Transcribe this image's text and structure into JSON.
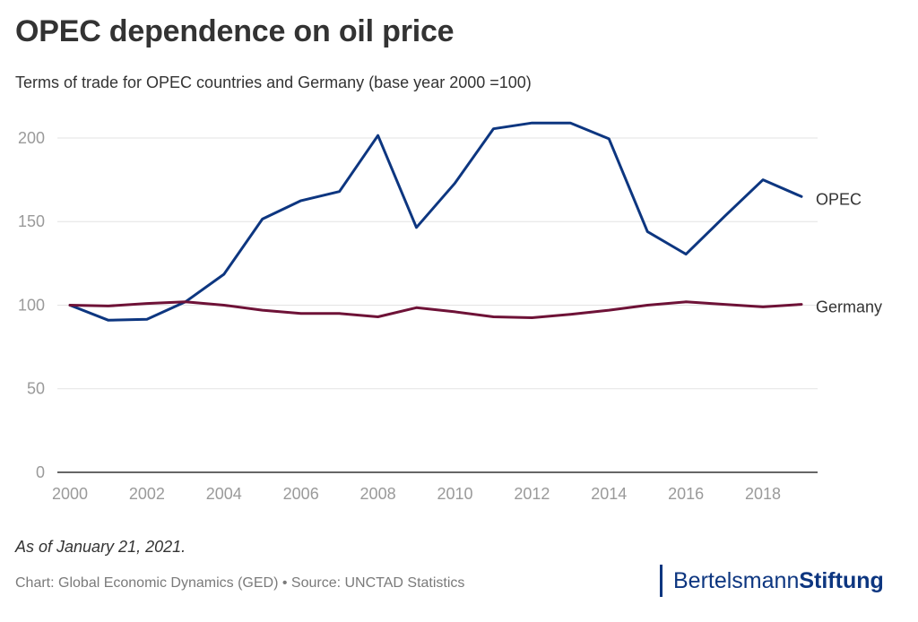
{
  "chart_data": {
    "type": "line",
    "title": "OPEC dependence on oil price",
    "subtitle": "Terms of trade for OPEC countries and Germany (base year 2000 =100)",
    "xlabel": "",
    "ylabel": "",
    "x": [
      2000,
      2001,
      2002,
      2003,
      2004,
      2005,
      2006,
      2007,
      2008,
      2009,
      2010,
      2011,
      2012,
      2013,
      2014,
      2015,
      2016,
      2017,
      2018,
      2019
    ],
    "xlim": [
      2000,
      2019
    ],
    "ylim": [
      0,
      215
    ],
    "x_ticks": [
      "2000",
      "2002",
      "2004",
      "2006",
      "2008",
      "2010",
      "2012",
      "2014",
      "2016",
      "2018"
    ],
    "y_ticks": [
      "0",
      "50",
      "100",
      "150",
      "200"
    ],
    "grid": true,
    "series": [
      {
        "name": "OPEC",
        "color": "#0d3680",
        "values": [
          100,
          91,
          91.5,
          102,
          118.5,
          151.5,
          162.5,
          168,
          201.5,
          146.5,
          173,
          205.5,
          209,
          209,
          199.5,
          144,
          130.5,
          153,
          175,
          165
        ]
      },
      {
        "name": "Germany",
        "color": "#6e1237",
        "values": [
          100,
          99.5,
          101,
          102,
          100,
          97,
          95,
          95,
          93,
          98.5,
          96,
          93,
          92.5,
          94.5,
          97,
          100,
          102,
          100.5,
          99,
          100.5
        ]
      }
    ]
  },
  "footer": {
    "note": "As of January 21, 2021.",
    "credit": "Chart: Global Economic Dynamics (GED) • Source: UNCTAD Statistics"
  },
  "logo": {
    "light": "Bertelsmann",
    "bold": "Stiftung"
  },
  "colors": {
    "grid": "#e3e3e3",
    "axis": "#333333",
    "tick_text": "#9a9a9a",
    "label_text": "#333333",
    "brand": "#0d3680"
  }
}
